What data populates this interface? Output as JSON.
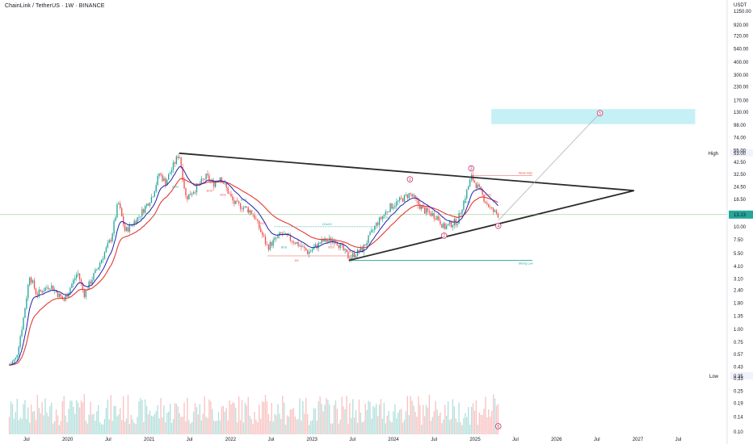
{
  "header": {
    "title": "ChainLink / TetherUS · 1W · BINANCE",
    "currency": "USDT"
  },
  "colors": {
    "up": "#26a69a",
    "down": "#ef5350",
    "ema_fast": "#1e22aa",
    "ema_slow": "#e53935",
    "triangle": "#2b2b2b",
    "target_zone": "#b2ebf2",
    "price_line": "#4caf50",
    "price_badge": "#26a69a",
    "projection": "#b0b0b0",
    "wave_labels": "#c2185b"
  },
  "chart_data": {
    "type": "candlestick",
    "symbol": "ChainLink / TetherUS",
    "interval": "1W",
    "exchange": "BINANCE",
    "y_scale": "log",
    "ylim": [
      0.095,
      1350
    ],
    "y_ticks": [
      "1250.00",
      "920.00",
      "720.00",
      "540.00",
      "400.00",
      "300.00",
      "230.00",
      "170.00",
      "130.00",
      "98.00",
      "74.00",
      "55.00",
      "42.50",
      "32.50",
      "24.50",
      "18.50",
      "13.75",
      "10.00",
      "7.50",
      "5.50",
      "4.10",
      "3.10",
      "2.40",
      "1.80",
      "1.35",
      "1.00",
      "0.75",
      "0.57",
      "0.43",
      "0.33",
      "0.25",
      "0.19",
      "0.14",
      "0.10"
    ],
    "x_ticks": [
      "Jul",
      "2020",
      "Jul",
      "2021",
      "Jul",
      "2022",
      "Jul",
      "2023",
      "Jul",
      "2024",
      "Jul",
      "2025",
      "Jul",
      "2026",
      "Jul",
      "2027",
      "Jul"
    ],
    "price_path": [
      [
        "2019-04",
        0.45
      ],
      [
        "2019-05",
        0.52
      ],
      [
        "2019-06",
        1.2
      ],
      [
        "2019-07",
        3.4
      ],
      [
        "2019-08",
        2.2
      ],
      [
        "2019-10",
        2.7
      ],
      [
        "2019-12",
        1.9
      ],
      [
        "2020-02",
        3.6
      ],
      [
        "2020-03",
        2.2
      ],
      [
        "2020-05",
        4.0
      ],
      [
        "2020-07",
        7.8
      ],
      [
        "2020-08",
        17.5
      ],
      [
        "2020-09",
        9.0
      ],
      [
        "2020-11",
        12.5
      ],
      [
        "2021-01",
        20
      ],
      [
        "2021-02",
        33
      ],
      [
        "2021-03",
        27
      ],
      [
        "2021-05",
        52
      ],
      [
        "2021-06",
        19
      ],
      [
        "2021-08",
        26
      ],
      [
        "2021-09",
        31
      ],
      [
        "2021-10",
        26
      ],
      [
        "2021-11",
        31
      ],
      [
        "2022-01",
        17
      ],
      [
        "2022-03",
        15
      ],
      [
        "2022-04",
        13
      ],
      [
        "2022-06",
        6.3
      ],
      [
        "2022-08",
        8.5
      ],
      [
        "2022-10",
        7.2
      ],
      [
        "2022-12",
        5.6
      ],
      [
        "2023-02",
        7.2
      ],
      [
        "2023-04",
        7.5
      ],
      [
        "2023-06",
        5.0
      ],
      [
        "2023-08",
        6.0
      ],
      [
        "2023-10",
        10.5
      ],
      [
        "2023-12",
        15.5
      ],
      [
        "2024-02",
        19
      ],
      [
        "2024-03",
        21
      ],
      [
        "2024-05",
        14.5
      ],
      [
        "2024-07",
        12.5
      ],
      [
        "2024-08",
        9.8
      ],
      [
        "2024-10",
        11.5
      ],
      [
        "2024-12",
        30.5
      ],
      [
        "2025-01",
        24
      ],
      [
        "2025-02",
        18
      ],
      [
        "2025-03",
        14.5
      ],
      [
        "2025-04",
        13.1
      ]
    ],
    "last_price": "13.13",
    "labels": {
      "high": "High",
      "high_value": "53.00",
      "low": "Low",
      "low_value": "0.35",
      "choch": "CHoCH",
      "fib": "6%",
      "weak_high": "Weak High",
      "strong_low": "Strong Low",
      "waves": [
        "1",
        "2",
        "3",
        "4",
        "5"
      ],
      "volume_wave_label": "6",
      "bos_labels": [
        "BOS",
        "BOS",
        "BOS",
        "BOS",
        "BOS",
        "BOS",
        "BOS",
        "BOS",
        "BOS",
        "BOS",
        "CHoCH",
        "BOS",
        "BOS",
        "BOS"
      ]
    },
    "moving_averages": [
      {
        "name": "EMA fast",
        "color": "#1e22aa"
      },
      {
        "name": "EMA slow",
        "color": "#e53935"
      }
    ],
    "triangle": {
      "upper": [
        [
          "2021-05",
          52
        ],
        [
          "2026-12",
          22.5
        ]
      ],
      "lower": [
        [
          "2023-06",
          4.7
        ],
        [
          "2026-12",
          22.5
        ]
      ]
    },
    "projection": [
      [
        "2025-04",
        11.5
      ],
      [
        "2026-07",
        128
      ]
    ],
    "target_zone": {
      "from_date": "2025-03",
      "to_date": "2027-09",
      "low": 100,
      "high": 140
    },
    "weak_high_level": 31.5,
    "strong_low_level": 4.7,
    "choch_level": 10.0
  }
}
